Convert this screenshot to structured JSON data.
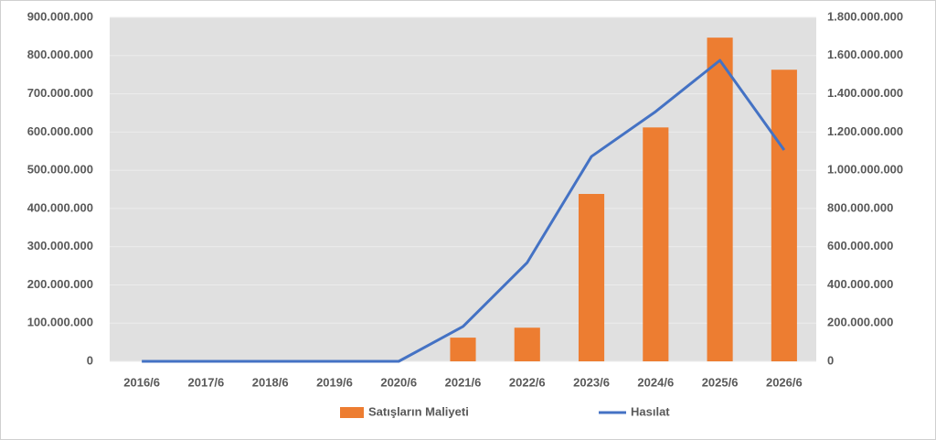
{
  "chart_data": {
    "type": "bar-line",
    "categories": [
      "2016/6",
      "2017/6",
      "2018/6",
      "2019/6",
      "2020/6",
      "2021/6",
      "2022/6",
      "2023/6",
      "2024/6",
      "2025/6",
      "2026/6"
    ],
    "series": [
      {
        "name": "Satışların Maliyeti",
        "type": "bar",
        "color": "#ed7d31",
        "values": [
          0,
          0,
          0,
          0,
          0,
          62000000,
          88000000,
          438000000,
          612000000,
          847000000,
          763000000
        ]
      },
      {
        "name": "Hasılat",
        "type": "line",
        "color": "#4472c4",
        "axis": "y2",
        "values": [
          0,
          0,
          0,
          0,
          0,
          182000000,
          517000000,
          1072000000,
          1307000000,
          1575000000,
          1106000000
        ]
      }
    ],
    "ylim": [
      0,
      900000000
    ],
    "yticks": [
      0,
      {
        "value": 100000000,
        "label": "100.000.000"
      },
      {
        "value": 200000000,
        "label": "200.000.000"
      },
      {
        "value": 300000000,
        "label": "300.000.000"
      },
      {
        "value": 400000000,
        "label": "400.000.000"
      },
      {
        "value": 500000000,
        "label": "500.000.000"
      },
      {
        "value": 600000000,
        "label": "600.000.000"
      },
      {
        "value": 700000000,
        "label": "700.000.000"
      },
      {
        "value": 800000000,
        "label": "800.000.000"
      },
      {
        "value": 900000000,
        "label": "900.000.000"
      }
    ],
    "y2lim": [
      0,
      1800000000
    ],
    "y2ticks": [
      0,
      {
        "value": 200000000,
        "label": "200.000.000"
      },
      {
        "value": 400000000,
        "label": "400.000.000"
      },
      {
        "value": 600000000,
        "label": "600.000.000"
      },
      {
        "value": 800000000,
        "label": "800.000.000"
      },
      {
        "value": 1000000000,
        "label": "1.000.000.000"
      },
      {
        "value": 1200000000,
        "label": "1.200.000.000"
      },
      {
        "value": 1400000000,
        "label": "1.400.000.000"
      },
      {
        "value": 1600000000,
        "label": "1.600.000.000"
      },
      {
        "value": 1800000000,
        "label": "1.800.000.000"
      }
    ],
    "grid": true,
    "legend": "bottom"
  }
}
